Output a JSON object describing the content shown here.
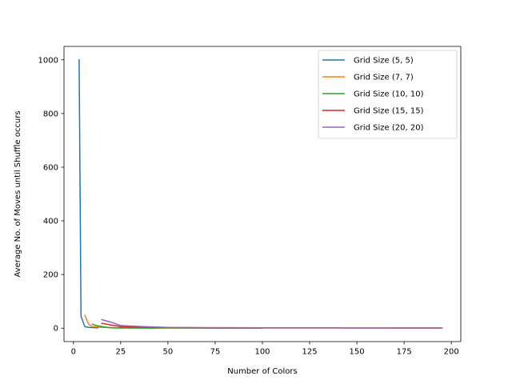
{
  "chart_data": {
    "type": "line",
    "title": "",
    "xlabel": "Number of Colors",
    "ylabel": "Average No. of Moves until Shuffle occurs",
    "xlim": [
      -5,
      205
    ],
    "ylim": [
      -50,
      1050
    ],
    "xticks": [
      0,
      25,
      50,
      75,
      100,
      125,
      150,
      175,
      200
    ],
    "yticks": [
      0,
      200,
      400,
      600,
      800,
      1000
    ],
    "grid": false,
    "legend_position": "top-right",
    "series": [
      {
        "name": "Grid Size (5, 5)",
        "color": "#1f77b4",
        "x": [
          3,
          4,
          6,
          8,
          10,
          13
        ],
        "y": [
          1000,
          45,
          6,
          3,
          2,
          1
        ]
      },
      {
        "name": "Grid Size (7, 7)",
        "color": "#ff7f0e",
        "x": [
          6,
          8,
          10,
          15,
          20,
          25,
          30,
          35,
          40,
          45
        ],
        "y": [
          48,
          15,
          6,
          3,
          2,
          1.5,
          1,
          1,
          1,
          0.5
        ]
      },
      {
        "name": "Grid Size (10, 10)",
        "color": "#2ca02c",
        "x": [
          10,
          12,
          15,
          18,
          21,
          25,
          35,
          50,
          75,
          100
        ],
        "y": [
          15,
          10,
          6,
          3,
          1,
          0.5,
          0.5,
          0.5,
          0.3,
          0.3
        ]
      },
      {
        "name": "Grid Size (15, 15)",
        "color": "#d62728",
        "x": [
          15,
          20,
          25,
          35,
          50,
          75,
          100,
          150,
          195
        ],
        "y": [
          18,
          12,
          6,
          4,
          2,
          1,
          0.5,
          0.5,
          0.3
        ]
      },
      {
        "name": "Grid Size (20, 20)",
        "color": "#9467bd",
        "x": [
          15,
          20,
          25,
          30,
          40,
          50,
          75,
          100,
          150,
          195
        ],
        "y": [
          32,
          22,
          10,
          8,
          5,
          3,
          2,
          1.5,
          1,
          1
        ]
      }
    ]
  }
}
